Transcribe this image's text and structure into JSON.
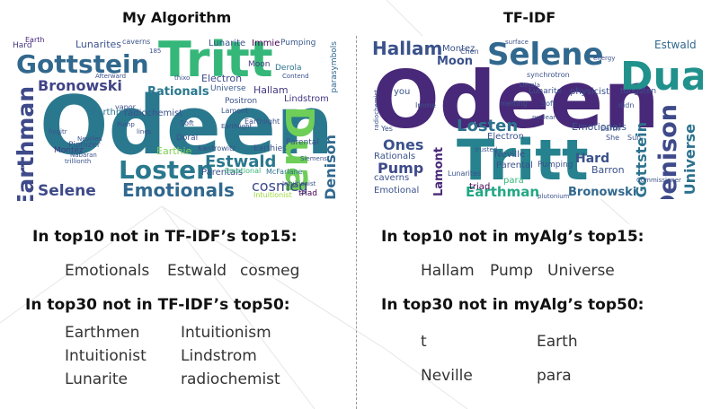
{
  "left": {
    "title": "My Algorithm",
    "cloud": {
      "palette": [
        "#3b0f70",
        "#31688e",
        "#26828e",
        "#1f9e89",
        "#35b779",
        "#6ece58",
        "#b5de2b",
        "#fde725",
        "#443983"
      ],
      "words": [
        {
          "t": "Odeen",
          "c": "#2a788e",
          "w": "bold"
        },
        {
          "t": "Tritt",
          "c": "#35b779"
        },
        {
          "t": "Gottstein",
          "c": "#31688e"
        },
        {
          "t": "Losten",
          "c": "#2a788e"
        },
        {
          "t": "Earthman",
          "c": "#3e4a89"
        },
        {
          "t": "Dua",
          "c": "#6ece58"
        },
        {
          "t": "Emotionals",
          "c": "#31688e"
        },
        {
          "t": "Selene",
          "c": "#3e4a89"
        },
        {
          "t": "Estwald",
          "c": "#2a788e"
        },
        {
          "t": "Bronowski",
          "c": "#414487"
        },
        {
          "t": "Rationals",
          "c": "#2a788e"
        },
        {
          "t": "Denison",
          "c": "#31688e"
        },
        {
          "t": "cosmeg",
          "c": "#3e4a89"
        },
        {
          "t": "Lunarites",
          "c": "#3b528b"
        },
        {
          "t": "Lunarite",
          "c": "#3b528b"
        },
        {
          "t": "Hallam",
          "c": "#443983"
        },
        {
          "t": "Earthmen",
          "c": "#2c728e"
        },
        {
          "t": "radiochemist",
          "c": "#3b528b"
        },
        {
          "t": "Electron",
          "c": "#3e4a89"
        },
        {
          "t": "Positron",
          "c": "#3b528b"
        },
        {
          "t": "Lindstrom",
          "c": "#443983"
        },
        {
          "t": "Universe",
          "c": "#38598c"
        },
        {
          "t": "Parentals",
          "c": "#3b528b"
        },
        {
          "t": "Earthie",
          "c": "#7ad151"
        },
        {
          "t": "Montez",
          "c": "#443983"
        },
        {
          "t": "Pipnizer",
          "c": "#3b528b"
        },
        {
          "t": "Intuitionist",
          "c": "#9bd93c"
        },
        {
          "t": "Immie",
          "c": "#440154"
        },
        {
          "t": "Pumping",
          "c": "#38598c"
        },
        {
          "t": "Moon",
          "c": "#443983"
        },
        {
          "t": "Derola",
          "c": "#2c728e"
        },
        {
          "t": "Doral",
          "c": "#3b528b"
        },
        {
          "t": "Parental",
          "c": "#3b528b"
        },
        {
          "t": "triad",
          "c": "#440154"
        },
        {
          "t": "Earth",
          "c": "#482878"
        },
        {
          "t": "Hard",
          "c": "#443983"
        },
        {
          "t": "caverns",
          "c": "#3b528b"
        },
        {
          "t": "parasymbols",
          "c": "#31688e"
        },
        {
          "t": "Emotional",
          "c": "#35b779"
        },
        {
          "t": "Earthies",
          "c": "#3b528b"
        },
        {
          "t": "Kantrowitz",
          "c": "#3b528b"
        },
        {
          "t": "Lamont",
          "c": "#3b528b"
        },
        {
          "t": "McFarlane",
          "c": "#2c728e"
        },
        {
          "t": "Earthlight",
          "c": "#3b528b"
        },
        {
          "t": "Soft",
          "c": "#3b528b"
        },
        {
          "t": "Nevilles",
          "c": "#3b528b"
        },
        {
          "t": "Pump",
          "c": "#3b528b"
        },
        {
          "t": "vapor",
          "c": "#3b528b"
        },
        {
          "t": "Contend",
          "c": "#3b528b"
        },
        {
          "t": "Siemens",
          "c": "#3b528b"
        },
        {
          "t": "Intuitionist",
          "c": "#3b528b"
        },
        {
          "t": "Earthlight",
          "c": "#3b528b"
        },
        {
          "t": "trillionth",
          "c": "#3b528b"
        },
        {
          "t": "Nabaran",
          "c": "#3b528b"
        },
        {
          "t": "hygitr",
          "c": "#3b528b"
        },
        {
          "t": "lings",
          "c": "#3b528b"
        },
        {
          "t": "thixo",
          "c": "#3b528b"
        },
        {
          "t": "Afterward",
          "c": "#3b528b"
        },
        {
          "t": "185",
          "c": "#3b528b"
        }
      ]
    },
    "sections": [
      {
        "heading": "In top10 not in TF-IDF’s top15:",
        "terms": [
          "Emotionals",
          "Estwald",
          "cosmeg"
        ]
      },
      {
        "heading": "In top30 not in TF-IDF’s top50:",
        "terms": [
          "Earthmen",
          "Intuitionism",
          "Intuitionist",
          "Lindstrom",
          "Lunarite",
          "radiochemist"
        ]
      }
    ]
  },
  "right": {
    "title": "TF-IDF",
    "cloud": {
      "words": [
        {
          "t": "Odeen",
          "c": "#482878"
        },
        {
          "t": "Tritt",
          "c": "#26828e"
        },
        {
          "t": "Dua",
          "c": "#21918c"
        },
        {
          "t": "Selene",
          "c": "#31688e"
        },
        {
          "t": "Hallam",
          "c": "#3b528b"
        },
        {
          "t": "Denison",
          "c": "#3e4a89"
        },
        {
          "t": "Earthman",
          "c": "#22a884"
        },
        {
          "t": "Losten",
          "c": "#2c728e"
        },
        {
          "t": "Gottstein",
          "c": "#2c728e"
        },
        {
          "t": "Universe",
          "c": "#2c728e"
        },
        {
          "t": "Bronowski",
          "c": "#31688e"
        },
        {
          "t": "Pump",
          "c": "#3e4a89"
        },
        {
          "t": "Lamont",
          "c": "#482878"
        },
        {
          "t": "Ones",
          "c": "#3b528b"
        },
        {
          "t": "Moon",
          "c": "#3b528b"
        },
        {
          "t": "Emotionals",
          "c": "#3b528b"
        },
        {
          "t": "Hard",
          "c": "#3b528b"
        },
        {
          "t": "Estwald",
          "c": "#31688e"
        },
        {
          "t": "Montez",
          "c": "#3b528b"
        },
        {
          "t": "Neville",
          "c": "#3b528b"
        },
        {
          "t": "para",
          "c": "#35b779"
        },
        {
          "t": "Lunarites",
          "c": "#3b528b"
        },
        {
          "t": "triad",
          "c": "#440154"
        },
        {
          "t": "Emotional",
          "c": "#3b528b"
        },
        {
          "t": "Rationals",
          "c": "#3b528b"
        },
        {
          "t": "Parental",
          "c": "#3b528b"
        },
        {
          "t": "Pumping",
          "c": "#3b528b"
        },
        {
          "t": "Barron",
          "c": "#3b528b"
        },
        {
          "t": "tungsten",
          "c": "#3b528b"
        },
        {
          "t": "Electron",
          "c": "#3b528b"
        },
        {
          "t": "physicist",
          "c": "#3b528b"
        },
        {
          "t": "Lunarite",
          "c": "#3b528b"
        },
        {
          "t": "synchrotron",
          "c": "#3b528b"
        },
        {
          "t": "caverns",
          "c": "#3b528b"
        },
        {
          "t": "melting",
          "c": "#3b528b"
        },
        {
          "t": "Soft",
          "c": "#3b528b"
        },
        {
          "t": "Chen",
          "c": "#3b528b"
        },
        {
          "t": "Derola",
          "c": "#3b528b"
        },
        {
          "t": "Earth",
          "c": "#3b528b"
        },
        {
          "t": "She",
          "c": "#3b528b"
        },
        {
          "t": "Sun",
          "c": "#3b528b"
        },
        {
          "t": "energy",
          "c": "#3b528b"
        },
        {
          "t": "nuclear",
          "c": "#3b528b"
        },
        {
          "t": "radiochemist",
          "c": "#3b528b"
        },
        {
          "t": "plutonium",
          "c": "#3b528b"
        },
        {
          "t": "Commissioner",
          "c": "#3b528b"
        },
        {
          "t": "trusted",
          "c": "#3b528b"
        },
        {
          "t": "Yes",
          "c": "#3b528b"
        },
        {
          "t": "you",
          "c": "#3b528b"
        },
        {
          "t": "Imme",
          "c": "#3b528b"
        },
        {
          "t": "surface",
          "c": "#3b528b"
        },
        {
          "t": "didn",
          "c": "#3b528b"
        }
      ]
    },
    "sections": [
      {
        "heading": "In top10 not in myAlg’s top15:",
        "terms": [
          "Hallam",
          "Pump",
          "Universe"
        ]
      },
      {
        "heading": "In top30 not in myAlg’s top50:",
        "terms": [
          "t",
          "Earth",
          "Neville",
          "para"
        ]
      }
    ]
  }
}
